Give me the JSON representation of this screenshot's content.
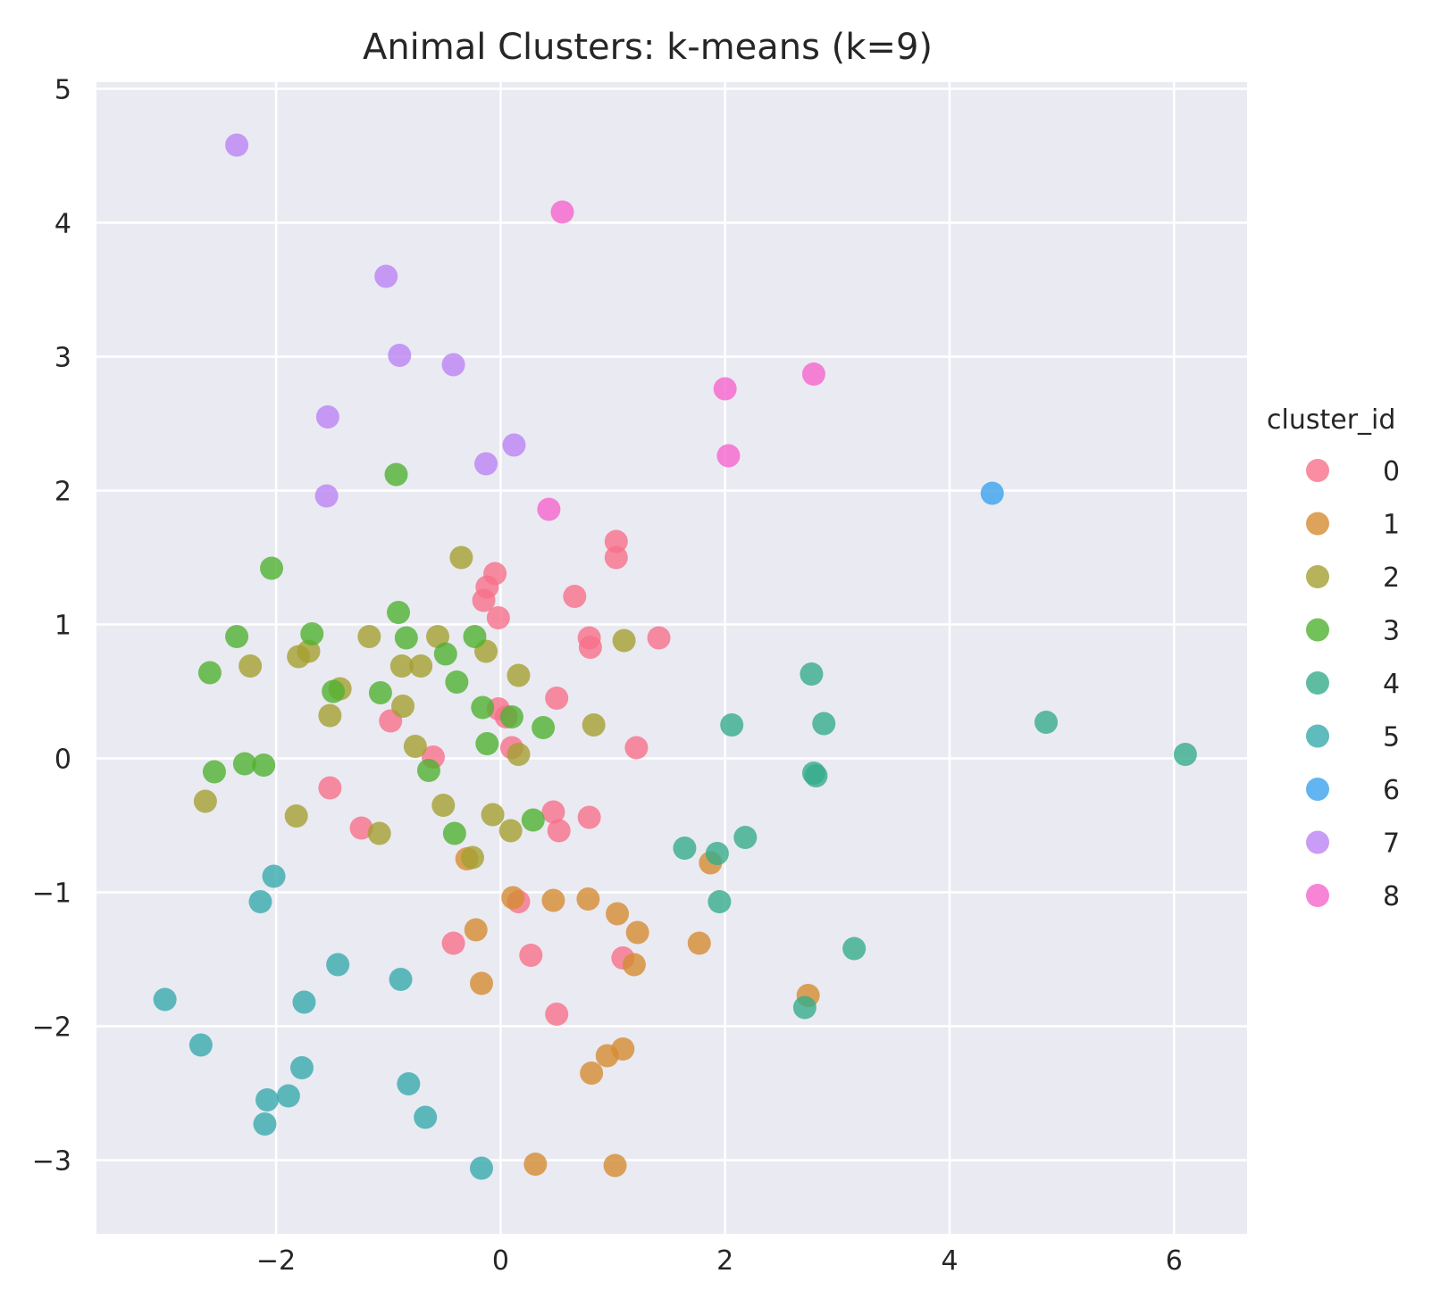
{
  "chart_data": {
    "type": "scatter",
    "title": "Animal Clusters: k-means (k=9)",
    "xlabel": "",
    "ylabel": "",
    "xlim": [
      -3.6,
      6.65
    ],
    "ylim": [
      -3.55,
      5.05
    ],
    "x_ticks": [
      -2,
      0,
      2,
      4,
      6
    ],
    "y_ticks": [
      -3,
      -2,
      -1,
      0,
      1,
      2,
      3,
      4,
      5
    ],
    "grid": true,
    "legend": {
      "title": "cluster_id",
      "placement": "right"
    },
    "series": [
      {
        "name": "0",
        "color": "#f77189",
        "points": [
          [
            -0.05,
            1.38
          ],
          [
            -0.12,
            1.28
          ],
          [
            -0.15,
            1.18
          ],
          [
            -0.02,
            1.05
          ],
          [
            0.66,
            1.21
          ],
          [
            1.03,
            1.62
          ],
          [
            1.03,
            1.5
          ],
          [
            0.79,
            0.9
          ],
          [
            0.8,
            0.83
          ],
          [
            1.41,
            0.9
          ],
          [
            0.5,
            0.45
          ],
          [
            -0.02,
            0.37
          ],
          [
            0.05,
            0.31
          ],
          [
            0.1,
            0.08
          ],
          [
            1.21,
            0.08
          ],
          [
            -0.98,
            0.28
          ],
          [
            -0.6,
            0.01
          ],
          [
            -1.52,
            -0.22
          ],
          [
            -1.24,
            -0.52
          ],
          [
            0.47,
            -0.4
          ],
          [
            0.52,
            -0.54
          ],
          [
            0.79,
            -0.44
          ],
          [
            0.16,
            -1.07
          ],
          [
            -0.42,
            -1.38
          ],
          [
            0.27,
            -1.47
          ],
          [
            1.09,
            -1.49
          ],
          [
            0.5,
            -1.91
          ]
        ]
      },
      {
        "name": "1",
        "color": "#d58c32",
        "points": [
          [
            -0.3,
            -0.75
          ],
          [
            1.87,
            -0.78
          ],
          [
            0.11,
            -1.04
          ],
          [
            0.47,
            -1.06
          ],
          [
            0.78,
            -1.05
          ],
          [
            1.04,
            -1.16
          ],
          [
            1.22,
            -1.3
          ],
          [
            -0.22,
            -1.28
          ],
          [
            1.19,
            -1.54
          ],
          [
            1.77,
            -1.38
          ],
          [
            -0.17,
            -1.68
          ],
          [
            2.74,
            -1.77
          ],
          [
            0.95,
            -2.22
          ],
          [
            1.09,
            -2.17
          ],
          [
            0.81,
            -2.35
          ],
          [
            0.31,
            -3.03
          ],
          [
            1.02,
            -3.04
          ]
        ]
      },
      {
        "name": "2",
        "color": "#a4a031",
        "points": [
          [
            -0.35,
            1.5
          ],
          [
            -1.17,
            0.91
          ],
          [
            -0.56,
            0.91
          ],
          [
            1.1,
            0.88
          ],
          [
            -0.13,
            0.8
          ],
          [
            -1.71,
            0.8
          ],
          [
            -1.8,
            0.76
          ],
          [
            -2.23,
            0.69
          ],
          [
            -0.88,
            0.69
          ],
          [
            -0.71,
            0.69
          ],
          [
            0.16,
            0.62
          ],
          [
            -1.43,
            0.52
          ],
          [
            -0.87,
            0.39
          ],
          [
            -1.52,
            0.32
          ],
          [
            0.83,
            0.25
          ],
          [
            -0.76,
            0.09
          ],
          [
            0.16,
            0.03
          ],
          [
            -2.63,
            -0.32
          ],
          [
            -0.51,
            -0.35
          ],
          [
            -1.82,
            -0.43
          ],
          [
            -0.07,
            -0.42
          ],
          [
            -1.08,
            -0.56
          ],
          [
            0.09,
            -0.54
          ],
          [
            -0.25,
            -0.74
          ]
        ]
      },
      {
        "name": "3",
        "color": "#50b131",
        "points": [
          [
            -0.93,
            2.12
          ],
          [
            -2.04,
            1.42
          ],
          [
            -0.91,
            1.09
          ],
          [
            -2.35,
            0.91
          ],
          [
            -1.68,
            0.93
          ],
          [
            -0.84,
            0.9
          ],
          [
            -0.23,
            0.91
          ],
          [
            -0.49,
            0.78
          ],
          [
            -2.59,
            0.64
          ],
          [
            -0.39,
            0.57
          ],
          [
            -1.49,
            0.5
          ],
          [
            -1.07,
            0.49
          ],
          [
            -0.16,
            0.38
          ],
          [
            0.1,
            0.31
          ],
          [
            0.38,
            0.23
          ],
          [
            -0.12,
            0.11
          ],
          [
            -2.55,
            -0.1
          ],
          [
            -2.28,
            -0.04
          ],
          [
            -2.11,
            -0.05
          ],
          [
            -0.64,
            -0.09
          ],
          [
            -0.41,
            -0.56
          ],
          [
            0.29,
            -0.46
          ]
        ]
      },
      {
        "name": "4",
        "color": "#36ad8a",
        "points": [
          [
            2.77,
            0.63
          ],
          [
            2.06,
            0.25
          ],
          [
            2.88,
            0.26
          ],
          [
            4.86,
            0.27
          ],
          [
            6.1,
            0.03
          ],
          [
            2.79,
            -0.11
          ],
          [
            2.81,
            -0.13
          ],
          [
            1.64,
            -0.67
          ],
          [
            2.18,
            -0.59
          ],
          [
            1.93,
            -0.71
          ],
          [
            1.95,
            -1.07
          ],
          [
            3.15,
            -1.42
          ],
          [
            2.71,
            -1.86
          ]
        ]
      },
      {
        "name": "5",
        "color": "#38aaac",
        "points": [
          [
            -2.02,
            -0.88
          ],
          [
            -2.14,
            -1.07
          ],
          [
            -1.45,
            -1.54
          ],
          [
            -0.89,
            -1.65
          ],
          [
            -1.75,
            -1.82
          ],
          [
            -2.99,
            -1.8
          ],
          [
            -2.67,
            -2.14
          ],
          [
            -1.77,
            -2.31
          ],
          [
            -2.08,
            -2.55
          ],
          [
            -1.89,
            -2.52
          ],
          [
            -2.1,
            -2.73
          ],
          [
            -0.82,
            -2.43
          ],
          [
            -0.67,
            -2.68
          ],
          [
            -0.17,
            -3.06
          ]
        ]
      },
      {
        "name": "6",
        "color": "#3ba3ec",
        "points": [
          [
            4.38,
            1.98
          ]
        ]
      },
      {
        "name": "7",
        "color": "#bb83f4",
        "points": [
          [
            -2.35,
            4.58
          ],
          [
            -1.02,
            3.6
          ],
          [
            -0.9,
            3.01
          ],
          [
            -0.42,
            2.94
          ],
          [
            -1.54,
            2.55
          ],
          [
            0.12,
            2.34
          ],
          [
            -0.13,
            2.2
          ],
          [
            -1.55,
            1.96
          ]
        ]
      },
      {
        "name": "8",
        "color": "#f565cc",
        "points": [
          [
            0.55,
            4.08
          ],
          [
            2.79,
            2.87
          ],
          [
            2.0,
            2.76
          ],
          [
            2.03,
            2.26
          ],
          [
            0.43,
            1.86
          ]
        ]
      }
    ]
  }
}
